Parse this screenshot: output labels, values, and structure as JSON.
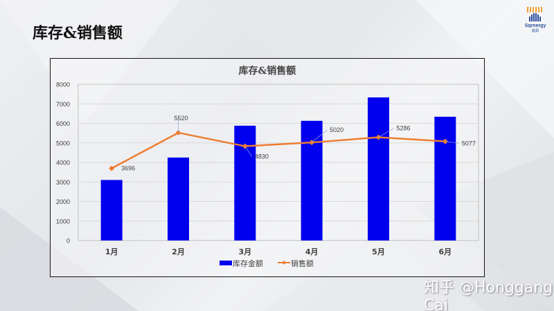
{
  "slide": {
    "title": "库存&销售额",
    "logo_text": "Sqrnergy",
    "logo_subtext": "能源",
    "watermark": "知乎 @Honggang Cai"
  },
  "colors": {
    "bar": "#0000EE",
    "line": "#ED7D31",
    "grid": "#D9D9D9"
  },
  "chart_data": {
    "type": "bar",
    "title": "库存&销售额",
    "categories": [
      "1月",
      "2月",
      "3月",
      "4月",
      "5月",
      "6月"
    ],
    "series": [
      {
        "name": "库存金额",
        "type": "bar",
        "values": [
          3100,
          4250,
          5880,
          6130,
          7330,
          6340
        ]
      },
      {
        "name": "销售额",
        "type": "line",
        "values": [
          3696,
          5520,
          4830,
          5020,
          5286,
          5077
        ],
        "labels": [
          "3696",
          "5520",
          "4830",
          "5020",
          "5286",
          "5077"
        ]
      }
    ],
    "xlabel": "",
    "ylabel": "",
    "ylim": [
      0,
      8000
    ],
    "yticks": [
      0,
      1000,
      2000,
      3000,
      4000,
      5000,
      6000,
      7000,
      8000
    ],
    "grid": true,
    "legend_position": "bottom"
  }
}
